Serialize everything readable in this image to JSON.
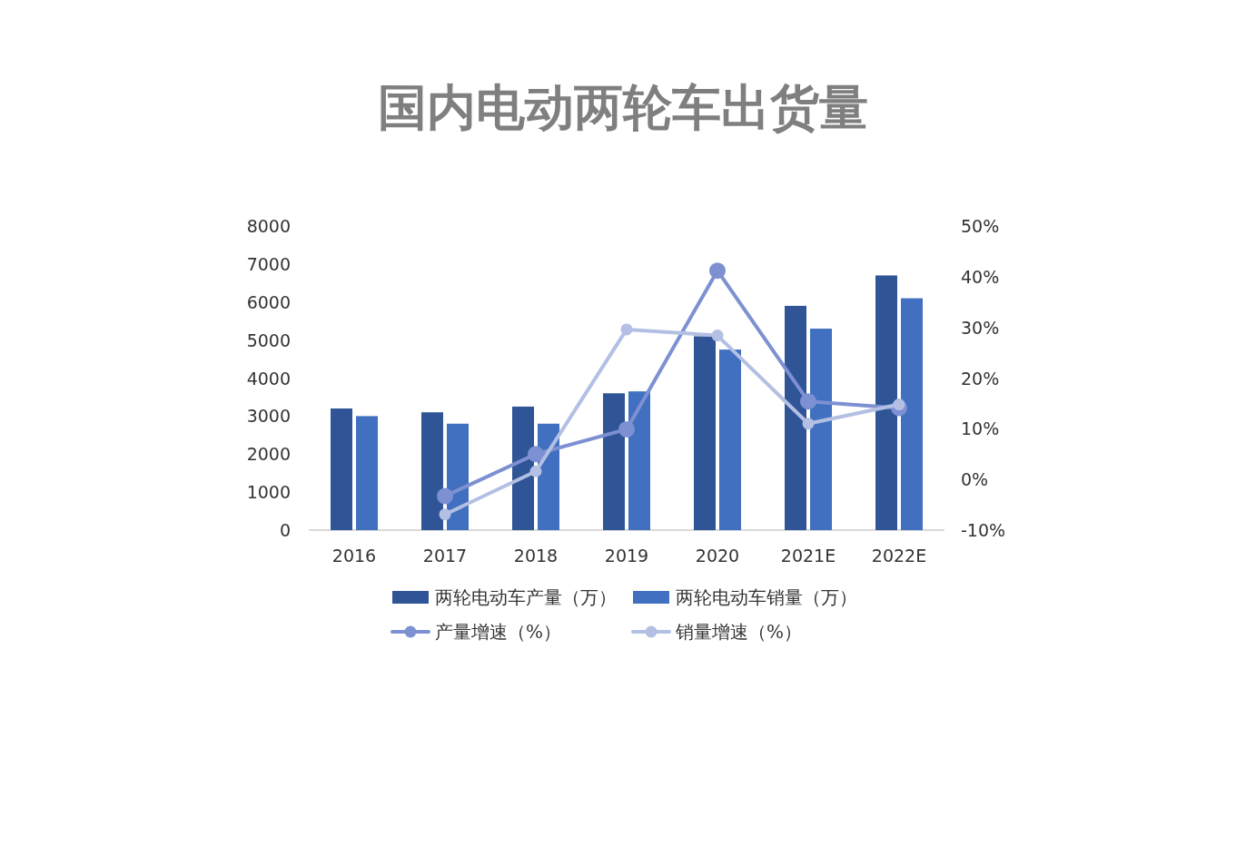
{
  "chart_data": {
    "type": "bar",
    "title": "国内电动两轮车出货量",
    "categories": [
      "2016",
      "2017",
      "2018",
      "2019",
      "2020",
      "2021E",
      "2022E"
    ],
    "series": [
      {
        "name": "两轮电动车产量（万）",
        "color": "#2f5597",
        "values": [
          3200,
          3100,
          3250,
          3600,
          5100,
          5900,
          6700
        ]
      },
      {
        "name": "两轮电动车销量（万）",
        "color": "#4070bf",
        "values": [
          3000,
          2800,
          2800,
          3650,
          4750,
          5300,
          6100
        ]
      },
      {
        "name": "产量增速（%）",
        "type": "line",
        "axis": "y2",
        "color": "#7d90d2",
        "values": [
          null,
          -3.3,
          5.0,
          9.9,
          41.2,
          15.4,
          14.1
        ]
      },
      {
        "name": "销量增速（%）",
        "type": "line",
        "axis": "y2",
        "color": "#b3bfe3",
        "values": [
          null,
          -6.9,
          1.6,
          29.6,
          28.4,
          11.0,
          14.8
        ]
      }
    ],
    "ylim": [
      0,
      8000
    ],
    "yticks": [
      0,
      1000,
      2000,
      3000,
      4000,
      5000,
      6000,
      7000,
      8000
    ],
    "y2lim": [
      -10,
      50
    ],
    "y2ticks": [
      {
        "value": -10,
        "label": "-10%"
      },
      {
        "value": 0,
        "label": "0%"
      },
      {
        "value": 10,
        "label": "10%"
      },
      {
        "value": 20,
        "label": "20%"
      },
      {
        "value": 30,
        "label": "30%"
      },
      {
        "value": 40,
        "label": "40%"
      },
      {
        "value": 50,
        "label": "50%"
      }
    ],
    "legend": "bottom",
    "marker": "circle"
  }
}
